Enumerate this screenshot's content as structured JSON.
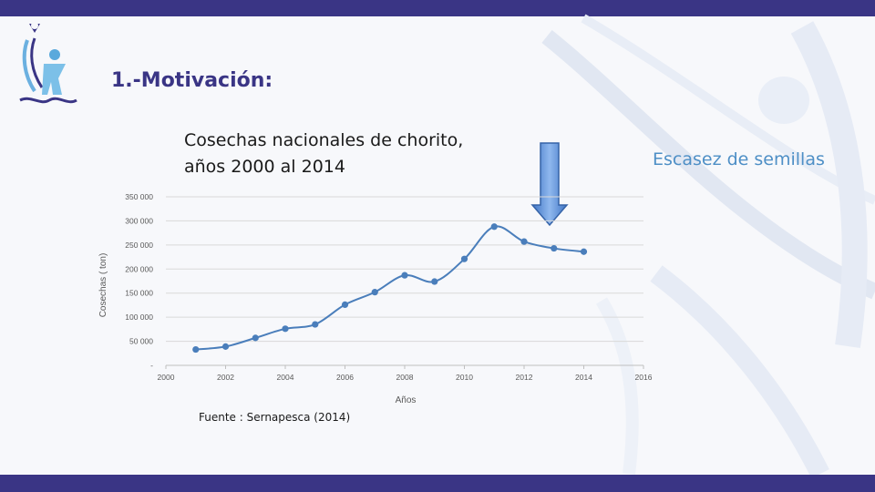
{
  "slide": {
    "title": "1.-Motivación:",
    "chart_title_line1": "Cosechas nacionales de chorito,",
    "chart_title_line2": "años 2000 al 2014",
    "note": "Escasez de semillas",
    "source": "Fuente : Sernapesca (2014)"
  },
  "colors": {
    "band": "#3a3585",
    "line": "#4a7ebb",
    "note": "#4e8fc6",
    "arrow": "#5b8fd8"
  },
  "icons": {
    "logo": "organization-logo-icon",
    "arrow": "down-arrow-icon"
  },
  "chart_data": {
    "type": "line",
    "title": "",
    "xlabel": "Años",
    "ylabel": "Cosechas  ( ton)",
    "xlim": [
      2000,
      2016
    ],
    "ylim": [
      0,
      350000
    ],
    "x_ticks": [
      "2000",
      "2002",
      "2004",
      "2006",
      "2008",
      "2010",
      "2012",
      "2014",
      "2016"
    ],
    "y_ticks": [
      "-",
      "50 000",
      "100 000",
      "150 000",
      "200 000",
      "250 000",
      "300 000",
      "350 000"
    ],
    "grid": true,
    "legend": "none",
    "series": [
      {
        "x": [
          2001,
          2002,
          2003,
          2004,
          2005,
          2006,
          2007,
          2008,
          2009,
          2010,
          2011,
          2012,
          2013,
          2014
        ],
        "y": [
          33000,
          39000,
          57000,
          76000,
          85000,
          126000,
          152000,
          187000,
          174000,
          221000,
          288000,
          257000,
          243000,
          236000
        ]
      }
    ]
  }
}
